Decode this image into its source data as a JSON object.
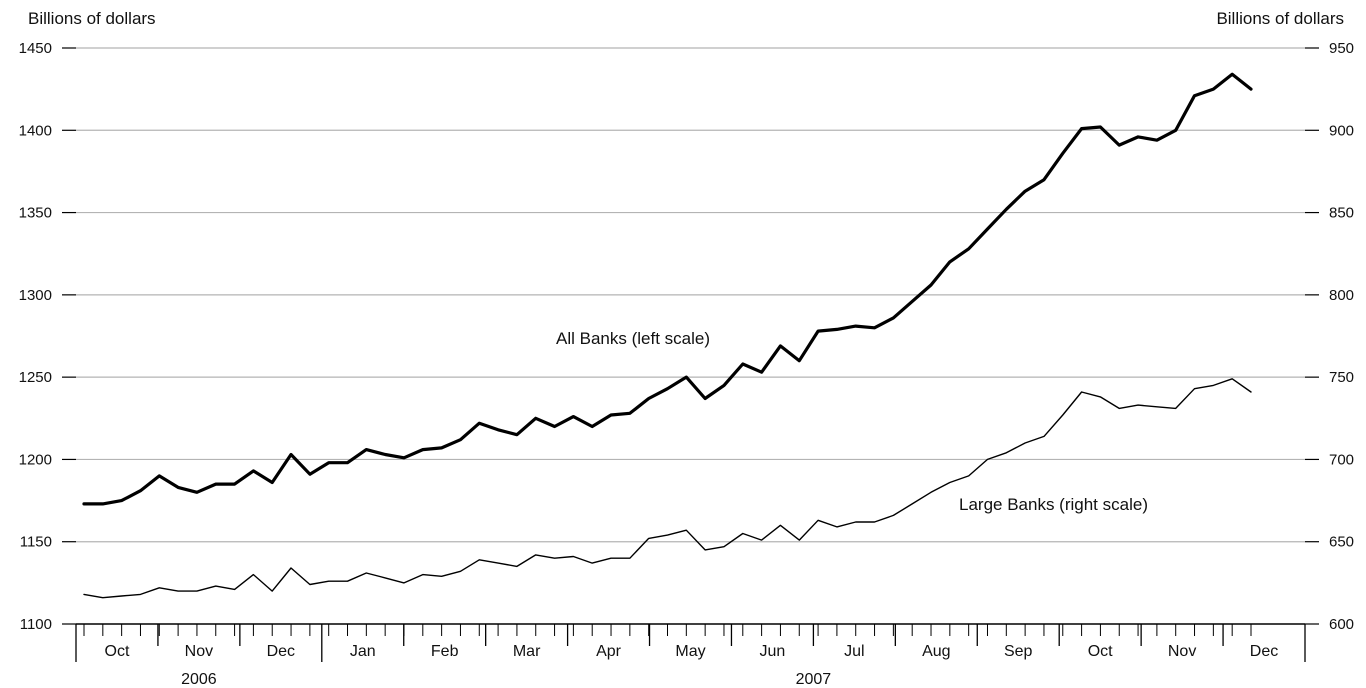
{
  "chart_data": {
    "type": "line",
    "left_axis_title": "Billions of dollars",
    "right_axis_title": "Billions of dollars",
    "left_ylim": [
      1100,
      1450
    ],
    "right_ylim": [
      600,
      950
    ],
    "left_ticks": [
      1100,
      1150,
      1200,
      1250,
      1300,
      1350,
      1400,
      1450
    ],
    "right_ticks": [
      600,
      650,
      700,
      750,
      800,
      850,
      900,
      950
    ],
    "grid": true,
    "months": [
      "Oct",
      "Nov",
      "Dec",
      "Jan",
      "Feb",
      "Mar",
      "Apr",
      "May",
      "Jun",
      "Jul",
      "Aug",
      "Sep",
      "Oct",
      "Nov",
      "Dec"
    ],
    "years": [
      "2006",
      "2007"
    ],
    "series": [
      {
        "name": "All Banks (left scale)",
        "axis": "left",
        "values": [
          1173,
          1173,
          1175,
          1181,
          1190,
          1183,
          1180,
          1185,
          1185,
          1193,
          1186,
          1203,
          1191,
          1198,
          1198,
          1206,
          1203,
          1201,
          1206,
          1207,
          1212,
          1222,
          1218,
          1215,
          1225,
          1220,
          1226,
          1220,
          1227,
          1228,
          1237,
          1243,
          1250,
          1237,
          1245,
          1258,
          1253,
          1269,
          1260,
          1278,
          1279,
          1281,
          1280,
          1286,
          1296,
          1306,
          1320,
          1328,
          1340,
          1352,
          1363,
          1370,
          1386,
          1401,
          1402,
          1391,
          1396,
          1394,
          1400,
          1421,
          1425,
          1434,
          1425
        ]
      },
      {
        "name": "Large Banks (right scale)",
        "axis": "right",
        "values": [
          618,
          616,
          617,
          618,
          622,
          620,
          620,
          623,
          621,
          630,
          620,
          634,
          624,
          626,
          626,
          631,
          628,
          625,
          630,
          629,
          632,
          639,
          637,
          635,
          642,
          640,
          641,
          637,
          640,
          640,
          652,
          654,
          657,
          645,
          647,
          655,
          651,
          660,
          651,
          663,
          659,
          662,
          662,
          666,
          673,
          680,
          686,
          690,
          700,
          704,
          710,
          714,
          727,
          741,
          738,
          731,
          733,
          732,
          731,
          743,
          745,
          749,
          741
        ]
      }
    ]
  }
}
